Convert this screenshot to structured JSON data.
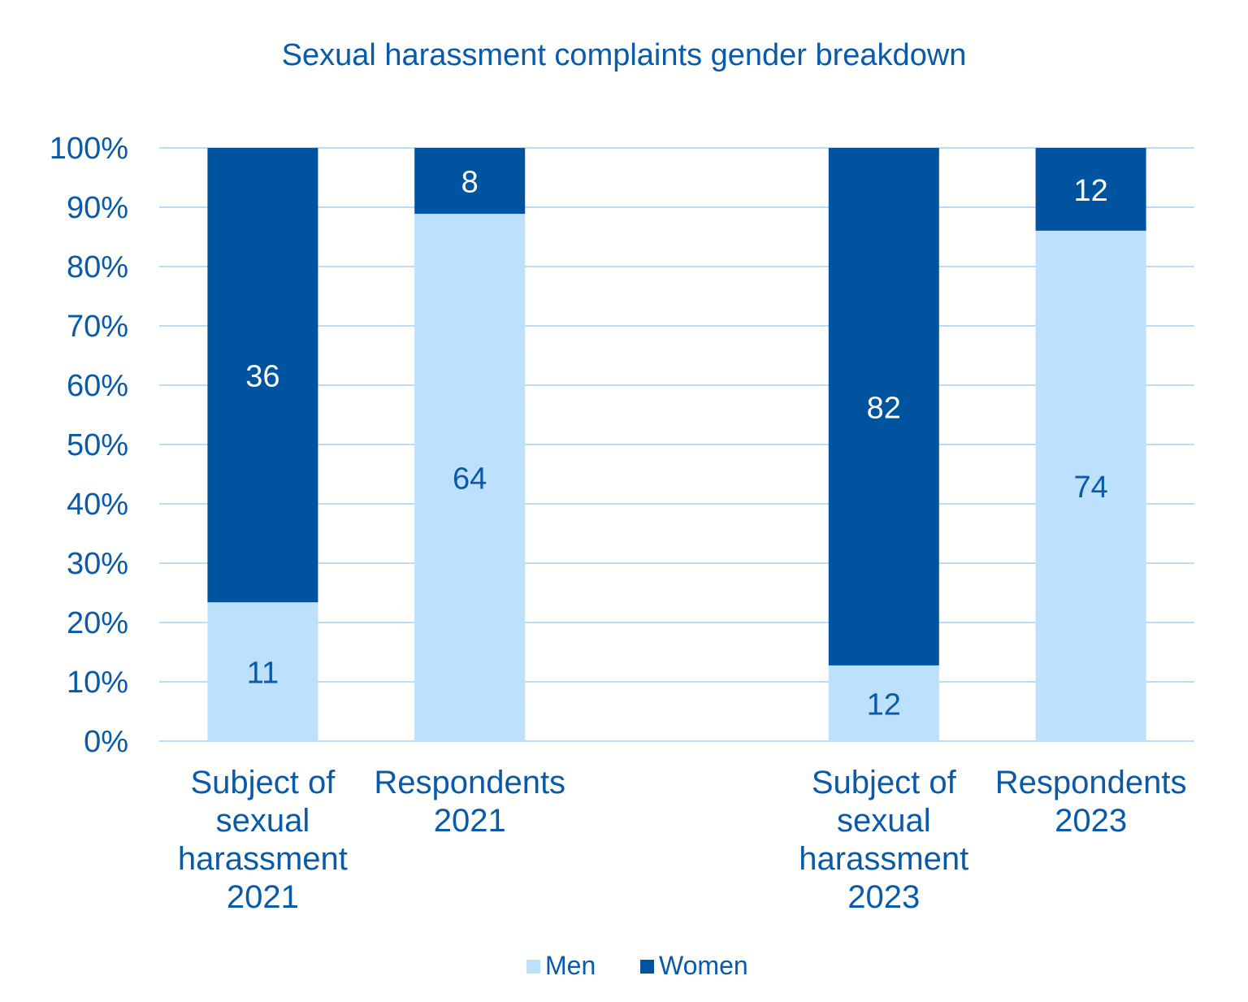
{
  "chart_data": {
    "type": "bar",
    "stacked": "percent",
    "title": "Sexual harassment complaints gender breakdown",
    "categories": [
      [
        "Subject of",
        "sexual",
        "harassment",
        "2021"
      ],
      [
        "Respondents",
        "2021"
      ],
      "",
      [
        "Subject of",
        "sexual",
        "harassment",
        "2023"
      ],
      [
        "Respondents",
        "2023"
      ]
    ],
    "series": [
      {
        "name": "Men",
        "values": [
          11,
          64,
          null,
          12,
          74
        ],
        "color": "#bde0fd",
        "label_color": "#0a5aa8"
      },
      {
        "name": "Women",
        "values": [
          36,
          8,
          null,
          82,
          12
        ],
        "color": "#00539f",
        "label_color": "#ffffff"
      }
    ],
    "y_ticks": [
      "0%",
      "10%",
      "20%",
      "30%",
      "40%",
      "50%",
      "60%",
      "70%",
      "80%",
      "90%",
      "100%"
    ],
    "ylim": [
      0,
      100
    ],
    "grid": true,
    "legend": "bottom"
  }
}
